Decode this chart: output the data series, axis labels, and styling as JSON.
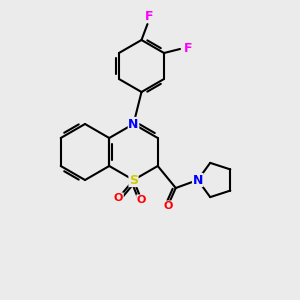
{
  "background_color": "#ebebeb",
  "bond_color": "#000000",
  "atom_colors": {
    "N": "#0000ff",
    "S": "#cccc00",
    "O": "#ff0000",
    "F": "#ff00ff",
    "C": "#000000"
  },
  "lw": 1.5,
  "fontsize": 9
}
